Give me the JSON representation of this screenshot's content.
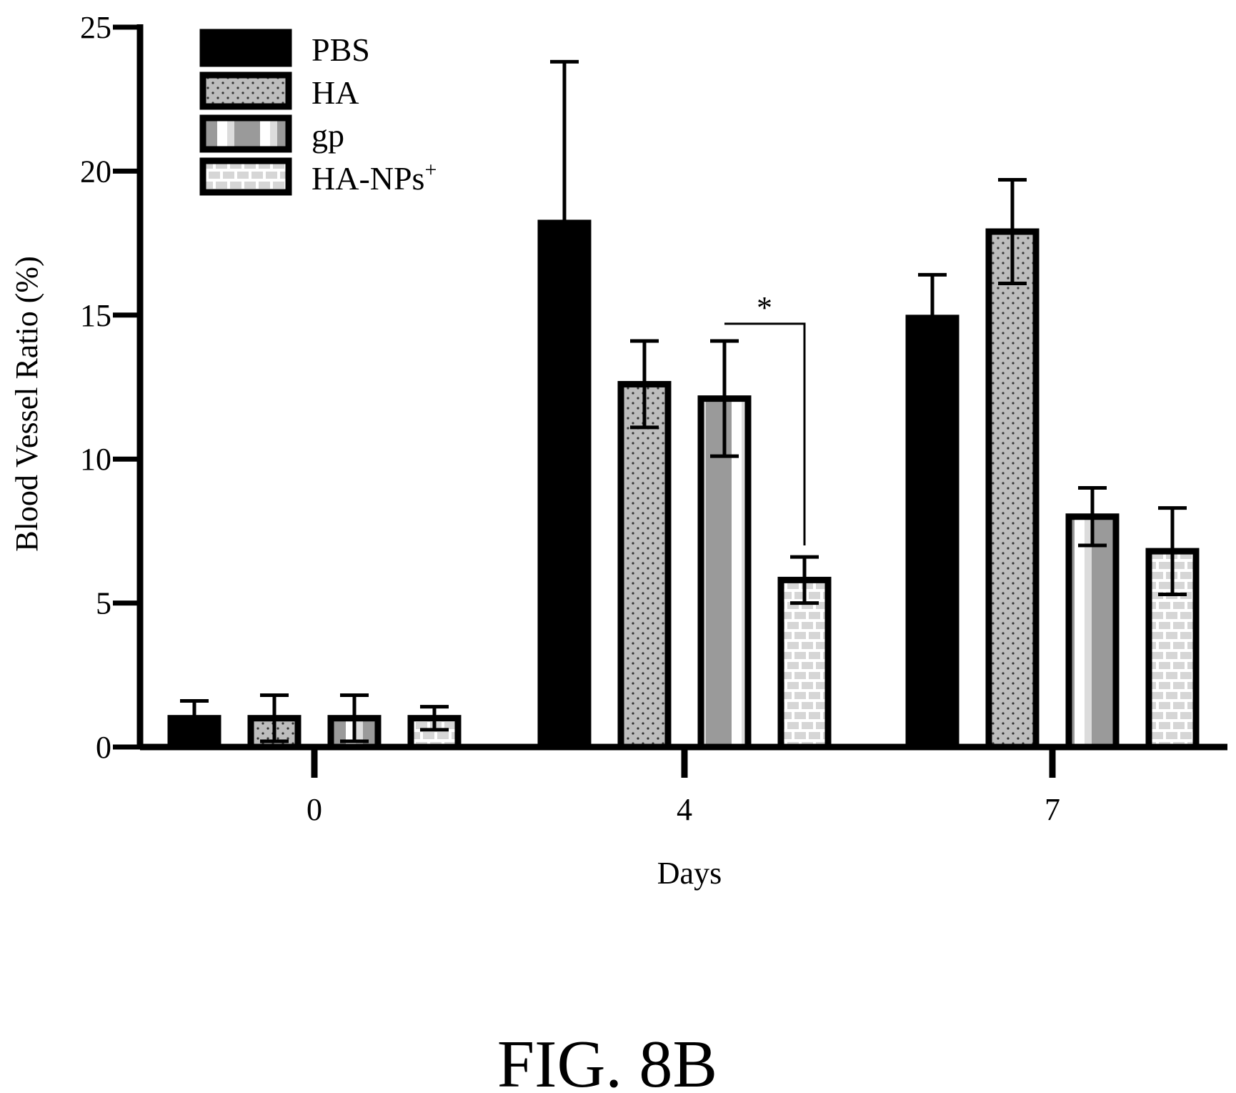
{
  "figure": {
    "caption": "FIG. 8B"
  },
  "chart_data": {
    "type": "bar",
    "title": "",
    "xlabel": "Days",
    "ylabel": "Blood Vessel Ratio (%)",
    "ylim": [
      0,
      25
    ],
    "yticks": [
      0,
      5,
      10,
      15,
      20,
      25
    ],
    "categories": [
      "0",
      "4",
      "7"
    ],
    "legend_position": "top-left",
    "series": [
      {
        "name": "PBS",
        "pattern": "solid",
        "color": "#000000",
        "values": [
          1.0,
          18.2,
          14.9
        ],
        "errors": [
          0.6,
          5.6,
          1.5
        ]
      },
      {
        "name": "HA",
        "pattern": "dots",
        "color": "#bdbdbd",
        "values": [
          1.0,
          12.6,
          17.9
        ],
        "errors": [
          0.8,
          1.5,
          1.8
        ]
      },
      {
        "name": "gp",
        "pattern": "vertical-stripes",
        "color": "#9a9a9a",
        "values": [
          1.0,
          12.1,
          8.0
        ],
        "errors": [
          0.8,
          2.0,
          1.0
        ]
      },
      {
        "name": "HA-NPs",
        "name_superscript": "+",
        "pattern": "bricks",
        "color": "#e0e0e0",
        "values": [
          1.0,
          5.8,
          6.8
        ],
        "errors": [
          0.4,
          0.8,
          1.5
        ]
      }
    ],
    "significance": [
      {
        "label": "*",
        "category": "4",
        "between": [
          "gp",
          "HA-NPs"
        ]
      }
    ]
  }
}
